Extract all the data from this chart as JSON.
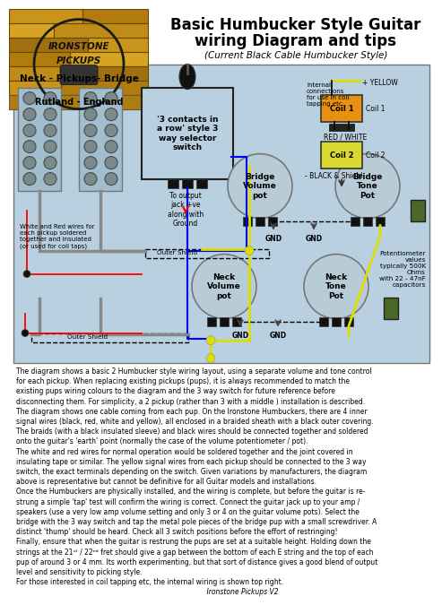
{
  "title_line1": "Basic Humbucker Style Guitar",
  "title_line2": "wiring Diagram and tips",
  "subtitle": "(Current Black Cable Humbucker Style)",
  "rutland_text": "Rutland - England",
  "neck_pickups_bridge": "Neck - Pickups- Bridge",
  "switch_label": "'3 contacts in\na row' style 3\nway selector\nswitch",
  "output_label": "To output\njack +ve\nalong with\nGround",
  "outer_shield1": "Outer Shield",
  "outer_shield2": "Outer Shield",
  "internal_text": "Internal\nconnections\nfor use in coil\ntapping etc.",
  "coil1_label": "Coil 1",
  "coil2_label": "Coil 2",
  "yellow_label": "+ YELLOW",
  "red_white_label": "RED / WHITE",
  "black_shield_label": "- BLACK & Shield",
  "bridge_vol_label": "Bridge\nVolume\npot",
  "bridge_tone_label": "Bridge\nTone\nPot",
  "neck_vol_label": "Neck\nVolume\npot",
  "neck_tone_label": "Neck\nTone\nPot",
  "pot_values_text": "Potentiometer\nvalues\ntypically 500K\nOhms\nwith 22 - 47nF\ncapacitors",
  "white_red_label": "White and Red wires for\neach pickup soldered\ntogether and insulated\n(or used for coil taps)",
  "body_text": "The diagram shows a basic 2 Humbucker style wiring layout, using a separate volume and tone control\nfor each pickup. When replacing existing pickups (pups), it is always recommended to match the\nexisting pups wiring colours to the diagram and the 3 way switch for future reference before\ndisconnecting them. For simplicity, a 2 pickup (rather than 3 with a middle ) installation is described.\nThe diagram shows one cable coming from each pup. On the Ironstone Humbuckers, there are 4 inner\nsignal wires (black, red, white and yellow), all enclosed in a braided sheath with a black outer covering.\nThe braids (with a black insulated sleeve) and black wires should be connected together and soldered\nonto the guitar's 'earth' point (normally the case of the volume potentiometer / pot).\nThe white and red wires for normal operation would be soldered together and the joint covered in\ninsulating tape or similar. The yellow signal wires from each pickup should be connected to the 3 way\nswitch, the exact terminals depending on the switch. Given variations by manufacturers, the diagram\nabove is representative but cannot be definitive for all Guitar models and installations.\nOnce the Humbuckers are physically installed, and the wiring is complete, but before the guitar is re-\nstrung a simple 'tap' test will confirm the wiring is correct. Connect the guitar jack up to your amp /\nspeakers (use a very low amp volume setting and only 3 or 4 on the guitar volume pots). Select the\nbridge with the 3 way switch and tap the metal pole pieces of the bridge pup with a small screwdriver. A\ndistinct 'thump' should be heard. Check all 3 switch positions before the effort of restringing!\nFinally, ensure that when the guitar is restrung the pups are set at a suitable height. Holding down the\nstrings at the 21ˢᵗ / 22ⁿᵈ fret should give a gap between the bottom of each E string and the top of each\npup of around 3 or 4 mm. Its worth experimenting, but that sort of distance gives a good blend of output\nlevel and sensitivity to picking style.\nFor those interested in coil tapping etc, the internal wiring is shown top right.\n                    Ironstone Pickups V2",
  "bg_color": "#ffffff",
  "diagram_bg": "#b8d0e0",
  "coil1_color": "#e89010",
  "coil2_color": "#d8d830",
  "cap_color": "#4a6828",
  "pot_color": "#b8ccd8",
  "stone_colors": [
    "#c8941a",
    "#b07c10",
    "#d4a422",
    "#be8c18",
    "#a07010"
  ],
  "logo_bg": "#c8941a"
}
